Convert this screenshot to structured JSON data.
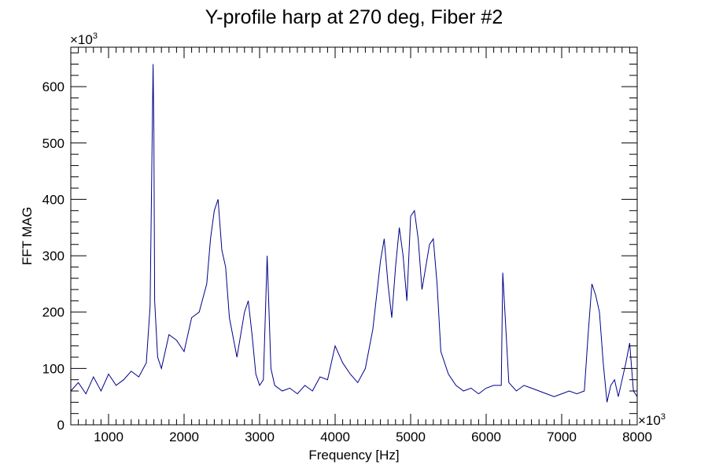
{
  "chart_data": {
    "type": "line",
    "title": "Y-profile harp at 270 deg, Fiber #2",
    "xlabel": "Frequency [Hz]",
    "ylabel": "FFT MAG",
    "x_multiplier_label": "×10",
    "x_multiplier_exponent": "3",
    "y_multiplier_label": "×10",
    "y_multiplier_exponent": "3",
    "xlim": [
      500,
      8000
    ],
    "ylim": [
      0,
      670
    ],
    "x_ticks": [
      1000,
      2000,
      3000,
      4000,
      5000,
      6000,
      7000,
      8000
    ],
    "y_ticks": [
      0,
      100,
      200,
      300,
      400,
      500,
      600
    ],
    "x_tick_labels": [
      "1000",
      "2000",
      "3000",
      "4000",
      "5000",
      "6000",
      "7000",
      "8000"
    ],
    "y_tick_labels": [
      "0",
      "100",
      "200",
      "300",
      "400",
      "500",
      "600"
    ],
    "grid": false,
    "series": [
      {
        "color": "#00008b",
        "x": [
          500,
          600,
          700,
          800,
          900,
          1000,
          1100,
          1200,
          1300,
          1400,
          1500,
          1550,
          1590,
          1600,
          1610,
          1650,
          1700,
          1800,
          1900,
          2000,
          2100,
          2200,
          2300,
          2350,
          2400,
          2450,
          2500,
          2550,
          2600,
          2700,
          2800,
          2850,
          2900,
          2950,
          3000,
          3050,
          3100,
          3150,
          3200,
          3300,
          3400,
          3500,
          3600,
          3700,
          3800,
          3900,
          4000,
          4100,
          4200,
          4300,
          4400,
          4500,
          4600,
          4650,
          4700,
          4750,
          4800,
          4850,
          4900,
          4950,
          5000,
          5050,
          5100,
          5150,
          5200,
          5250,
          5300,
          5350,
          5400,
          5500,
          5600,
          5700,
          5800,
          5900,
          6000,
          6100,
          6200,
          6220,
          6300,
          6400,
          6500,
          6600,
          6700,
          6800,
          6900,
          7000,
          7100,
          7200,
          7300,
          7350,
          7400,
          7450,
          7500,
          7550,
          7600,
          7650,
          7700,
          7750,
          7800,
          7850,
          7900,
          7950,
          8000
        ],
        "y": [
          60,
          75,
          55,
          85,
          60,
          90,
          70,
          80,
          95,
          85,
          110,
          210,
          640,
          520,
          220,
          120,
          100,
          160,
          150,
          130,
          190,
          200,
          250,
          330,
          380,
          400,
          310,
          280,
          190,
          120,
          200,
          220,
          160,
          90,
          70,
          80,
          300,
          100,
          70,
          60,
          65,
          55,
          70,
          60,
          85,
          80,
          140,
          110,
          90,
          75,
          100,
          170,
          290,
          330,
          250,
          190,
          280,
          350,
          300,
          220,
          370,
          380,
          330,
          240,
          280,
          320,
          330,
          250,
          130,
          90,
          70,
          60,
          65,
          55,
          65,
          70,
          70,
          270,
          75,
          60,
          70,
          65,
          60,
          55,
          50,
          55,
          60,
          55,
          60,
          160,
          250,
          230,
          200,
          110,
          40,
          70,
          80,
          50,
          80,
          110,
          145,
          60,
          50
        ]
      }
    ]
  }
}
